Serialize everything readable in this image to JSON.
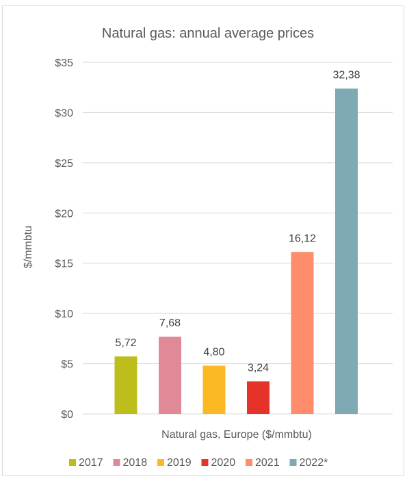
{
  "chart_data": {
    "type": "bar",
    "title": "Natural gas: annual average prices",
    "xlabel": "Natural gas, Europe ($/mmbtu)",
    "ylabel": "$/mmbtu",
    "ylim": [
      0,
      35
    ],
    "yticks": [
      "$0",
      "$5",
      "$10",
      "$15",
      "$20",
      "$25",
      "$30",
      "$35"
    ],
    "ytick_values": [
      0,
      5,
      10,
      15,
      20,
      25,
      30,
      35
    ],
    "grid": true,
    "legend_position": "bottom",
    "series": [
      {
        "name": "2017",
        "value": 5.72,
        "label": "5,72",
        "color": "#BDBE1C"
      },
      {
        "name": "2018",
        "value": 7.68,
        "label": "7,68",
        "color": "#E08A98"
      },
      {
        "name": "2019",
        "value": 4.8,
        "label": "4,80",
        "color": "#FDB924"
      },
      {
        "name": "2020",
        "value": 3.24,
        "label": "3,24",
        "color": "#E5332A"
      },
      {
        "name": "2021",
        "value": 16.12,
        "label": "16,12",
        "color": "#FF8C6A"
      },
      {
        "name": "2022*",
        "value": 32.38,
        "label": "32,38",
        "color": "#7FA9B3"
      }
    ]
  }
}
